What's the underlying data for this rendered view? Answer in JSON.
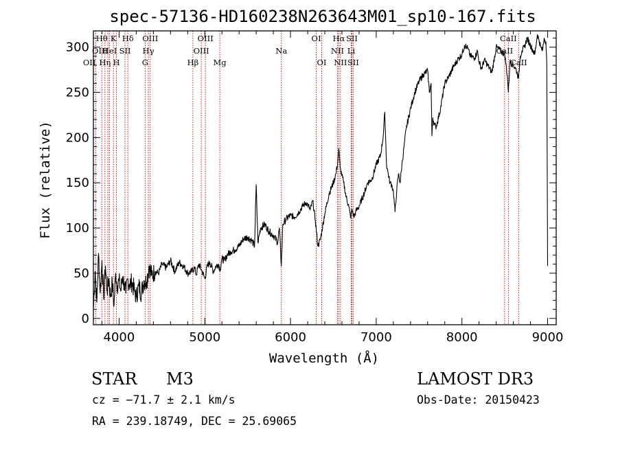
{
  "chart_data": {
    "type": "line",
    "title": "spec-57136-HD160238N263643M01_sp10-167.fits",
    "xlabel": "Wavelength (Å)",
    "ylabel": "Flux (relative)",
    "xlim": [
      3700,
      9100
    ],
    "ylim": [
      -7,
      318
    ],
    "xticks": [
      4000,
      5000,
      6000,
      7000,
      8000,
      9000
    ],
    "yticks": [
      0,
      50,
      100,
      150,
      200,
      250,
      300
    ],
    "series": [
      {
        "name": "spectrum",
        "x": [
          3700,
          3720,
          3740,
          3760,
          3780,
          3800,
          3820,
          3840,
          3860,
          3880,
          3900,
          3920,
          3940,
          3960,
          3980,
          4000,
          4020,
          4040,
          4060,
          4080,
          4100,
          4120,
          4150,
          4180,
          4200,
          4230,
          4260,
          4290,
          4320,
          4350,
          4380,
          4420,
          4460,
          4500,
          4550,
          4600,
          4650,
          4700,
          4750,
          4800,
          4850,
          4880,
          4900,
          4930,
          4960,
          5000,
          5030,
          5060,
          5100,
          5130,
          5160,
          5180,
          5200,
          5230,
          5260,
          5300,
          5350,
          5400,
          5450,
          5500,
          5550,
          5580,
          5600,
          5620,
          5650,
          5700,
          5750,
          5800,
          5850,
          5870,
          5893,
          5910,
          5950,
          6000,
          6050,
          6100,
          6140,
          6180,
          6200,
          6230,
          6260,
          6290,
          6320,
          6350,
          6400,
          6450,
          6500,
          6530,
          6550,
          6563,
          6580,
          6600,
          6620,
          6650,
          6680,
          6700,
          6720,
          6740,
          6760,
          6800,
          6850,
          6900,
          6950,
          7000,
          7050,
          7080,
          7100,
          7120,
          7140,
          7160,
          7180,
          7200,
          7220,
          7240,
          7260,
          7280,
          7300,
          7350,
          7400,
          7450,
          7500,
          7550,
          7600,
          7620,
          7640,
          7650,
          7660,
          7680,
          7700,
          7750,
          7800,
          7850,
          7900,
          7950,
          8000,
          8030,
          8060,
          8100,
          8150,
          8180,
          8200,
          8230,
          8260,
          8300,
          8350,
          8400,
          8450,
          8500,
          8530,
          8542,
          8560,
          8600,
          8630,
          8662,
          8680,
          8700,
          8730,
          8760,
          8790,
          8820,
          8850,
          8880,
          8900,
          8920,
          8940,
          8960,
          8980,
          8990,
          9000
        ],
        "y": [
          10,
          52,
          18,
          72,
          28,
          64,
          22,
          58,
          30,
          44,
          24,
          40,
          14,
          50,
          36,
          42,
          30,
          46,
          38,
          28,
          44,
          38,
          40,
          30,
          24,
          36,
          28,
          42,
          40,
          58,
          48,
          52,
          50,
          60,
          56,
          64,
          52,
          62,
          58,
          50,
          52,
          56,
          48,
          60,
          54,
          44,
          58,
          62,
          52,
          58,
          60,
          54,
          66,
          64,
          70,
          74,
          76,
          80,
          88,
          90,
          86,
          80,
          148,
          84,
          100,
          104,
          96,
          92,
          84,
          100,
          58,
          104,
          110,
          114,
          112,
          118,
          124,
          128,
          126,
          120,
          130,
          108,
          80,
          88,
          116,
          138,
          150,
          160,
          172,
          188,
          166,
          158,
          150,
          134,
          124,
          112,
          120,
          112,
          118,
          124,
          136,
          150,
          154,
          170,
          180,
          200,
          228,
          170,
          160,
          150,
          148,
          140,
          118,
          142,
          160,
          150,
          170,
          210,
          232,
          250,
          262,
          270,
          274,
          250,
          260,
          202,
          222,
          214,
          212,
          232,
          260,
          268,
          278,
          286,
          292,
          302,
          300,
          290,
          288,
          296,
          284,
          276,
          286,
          280,
          272,
          300,
          296,
          292,
          268,
          250,
          284,
          280,
          276,
          266,
          290,
          296,
          300,
          310,
          304,
          298,
          292,
          314,
          308,
          300,
          296,
          310,
          306,
          280,
          58
        ]
      }
    ],
    "lines": [
      {
        "id": "OII",
        "label": "OII",
        "wavelength": 3727,
        "row": 2,
        "anchor": "end"
      },
      {
        "id": "H-theta",
        "label": "Hθ",
        "wavelength": 3798,
        "row": 0,
        "anchor": "middle"
      },
      {
        "id": "CaII-K",
        "label": "K",
        "wavelength": 3934,
        "row": 0,
        "anchor": "middle"
      },
      {
        "id": "CaII-H",
        "label": "H",
        "wavelength": 3969,
        "row": 2,
        "anchor": "middle"
      },
      {
        "id": "H-eta",
        "label": "Hη",
        "wavelength": 3835,
        "row": 2,
        "anchor": "middle"
      },
      {
        "id": "OIII-3869",
        "label": "OIII",
        "wavelength": 3869,
        "row": 1,
        "anchor": "end"
      },
      {
        "id": "HeI",
        "label": "HeI",
        "wavelength": 3889,
        "row": 1,
        "anchor": "middle"
      },
      {
        "id": "SII-4069",
        "label": "SII",
        "wavelength": 4069,
        "row": 1,
        "anchor": "middle"
      },
      {
        "id": "H-delta",
        "label": "Hδ",
        "wavelength": 4102,
        "row": 0,
        "anchor": "middle"
      },
      {
        "id": "G-band",
        "label": "G",
        "wavelength": 4304,
        "row": 2,
        "anchor": "middle"
      },
      {
        "id": "OIII-4363",
        "label": "OIII",
        "wavelength": 4363,
        "row": 0,
        "anchor": "middle"
      },
      {
        "id": "H-gamma",
        "label": "Hγ",
        "wavelength": 4341,
        "row": 1,
        "anchor": "middle"
      },
      {
        "id": "H-beta",
        "label": "Hβ",
        "wavelength": 4861,
        "row": 2,
        "anchor": "middle"
      },
      {
        "id": "OIII-4959",
        "label": "OIII",
        "wavelength": 4959,
        "row": 1,
        "anchor": "middle"
      },
      {
        "id": "OIII-5007",
        "label": "OIII",
        "wavelength": 5007,
        "row": 0,
        "anchor": "middle"
      },
      {
        "id": "Mg",
        "label": "Mg",
        "wavelength": 5175,
        "row": 2,
        "anchor": "middle"
      },
      {
        "id": "Na",
        "label": "Na",
        "wavelength": 5893,
        "row": 1,
        "anchor": "middle"
      },
      {
        "id": "OI-6300",
        "label": "OI",
        "wavelength": 6300,
        "row": 0,
        "anchor": "middle"
      },
      {
        "id": "OI-6364",
        "label": "OI",
        "wavelength": 6364,
        "row": 2,
        "anchor": "middle"
      },
      {
        "id": "NII-6548",
        "label": "NII",
        "wavelength": 6548,
        "row": 1,
        "anchor": "middle"
      },
      {
        "id": "H-alpha",
        "label": "Hα",
        "wavelength": 6563,
        "row": 0,
        "anchor": "middle"
      },
      {
        "id": "NII-6583",
        "label": "NII",
        "wavelength": 6583,
        "row": 2,
        "anchor": "middle"
      },
      {
        "id": "Li",
        "label": "Li",
        "wavelength": 6708,
        "row": 1,
        "anchor": "middle"
      },
      {
        "id": "SII-6716",
        "label": "SII",
        "wavelength": 6716,
        "row": 0,
        "anchor": "middle"
      },
      {
        "id": "SII-6731",
        "label": "SII",
        "wavelength": 6731,
        "row": 2,
        "anchor": "middle"
      },
      {
        "id": "CaII-8498",
        "label": "CaII",
        "wavelength": 8498,
        "row": 1,
        "anchor": "middle"
      },
      {
        "id": "CaII-8542",
        "label": "CaII",
        "wavelength": 8542,
        "row": 0,
        "anchor": "middle"
      },
      {
        "id": "CaII-8662",
        "label": "CaII",
        "wavelength": 8662,
        "row": 2,
        "anchor": "middle"
      }
    ]
  },
  "info": {
    "object_class": "STAR",
    "subclass": "M3",
    "survey": "LAMOST DR3",
    "cz": "cz = −71.7 ± 2.1 km/s",
    "obs_date": "Obs-Date: 20150423",
    "coords": "RA = 239.18749, DEC =  25.69065"
  },
  "colors": {
    "spectrum": "#000000",
    "line_marker": "#cc0000",
    "axes": "#000000"
  }
}
